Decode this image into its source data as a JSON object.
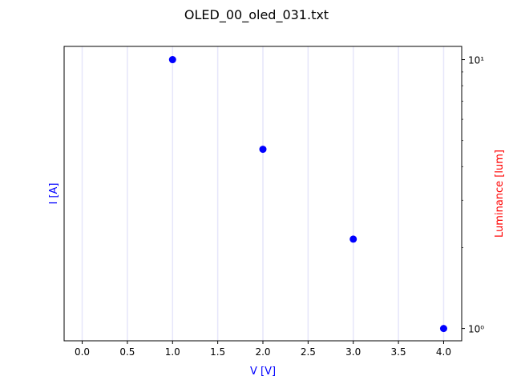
{
  "chart_data": {
    "type": "scatter",
    "title": "OLED_00_oled_031.txt",
    "xlabel": "V [V]",
    "ylabel_left": "I [A]",
    "ylabel_right": "Luminance [lum]",
    "xlim": [
      -0.2,
      4.2
    ],
    "x_ticks": [
      0.0,
      0.5,
      1.0,
      1.5,
      2.0,
      2.5,
      3.0,
      3.5,
      4.0
    ],
    "x_tick_labels": [
      "0.0",
      "0.5",
      "1.0",
      "1.5",
      "2.0",
      "2.5",
      "3.0",
      "3.5",
      "4.0"
    ],
    "right_axis_scale": "log",
    "right_ylim": [
      0.9,
      11.2
    ],
    "right_ticks": [
      1,
      10
    ],
    "right_tick_labels": [
      "10⁰",
      "10¹"
    ],
    "grid": "vertical",
    "series": [
      {
        "axis": "right",
        "x": [
          1.0,
          2.0,
          3.0,
          4.0
        ],
        "y": [
          10.0,
          4.64,
          2.15,
          1.0
        ]
      }
    ],
    "colors": {
      "points": "#0000ff",
      "xlabel": "#0000ff",
      "ylabel_left": "#0000ff",
      "ylabel_right": "#ff0000",
      "grid": "#e6e6fa",
      "axes": "#000000"
    }
  }
}
